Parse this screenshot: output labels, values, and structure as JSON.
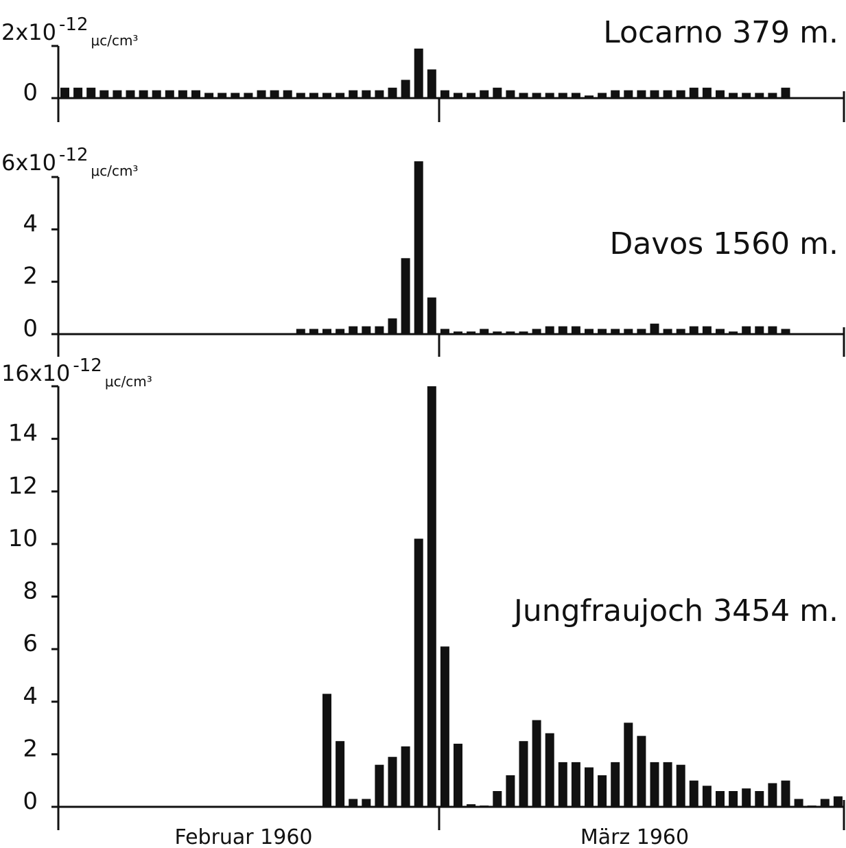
{
  "chart_data": [
    {
      "type": "bar",
      "station": "Locarno 379 m.",
      "unit_label": {
        "mantissa": "2x10",
        "exponent": "-12",
        "unit": "μc/cm³"
      },
      "yticks": [
        "0"
      ],
      "ylim": [
        0,
        2
      ],
      "values": [
        0.4,
        0.4,
        0.4,
        0.3,
        0.3,
        0.3,
        0.3,
        0.3,
        0.3,
        0.3,
        0.3,
        0.2,
        0.2,
        0.2,
        0.2,
        0.3,
        0.3,
        0.3,
        0.2,
        0.2,
        0.2,
        0.2,
        0.3,
        0.3,
        0.3,
        0.4,
        0.7,
        1.9,
        1.1,
        0.3,
        0.2,
        0.2,
        0.3,
        0.4,
        0.3,
        0.2,
        0.2,
        0.2,
        0.2,
        0.2,
        0.1,
        0.2,
        0.3,
        0.3,
        0.3,
        0.3,
        0.3,
        0.3,
        0.4,
        0.4,
        0.3,
        0.2,
        0.2,
        0.2,
        0.2,
        0.4
      ]
    },
    {
      "type": "bar",
      "station": "Davos 1560 m.",
      "unit_label": {
        "mantissa": "6x10",
        "exponent": "-12",
        "unit": "μc/cm³"
      },
      "yticks": [
        "0",
        "2",
        "4"
      ],
      "ylim": [
        0,
        6
      ],
      "values": [
        null,
        null,
        null,
        null,
        null,
        null,
        null,
        null,
        null,
        null,
        null,
        null,
        null,
        null,
        null,
        null,
        null,
        null,
        0.2,
        0.2,
        0.2,
        0.2,
        0.3,
        0.3,
        0.3,
        0.6,
        2.9,
        6.6,
        1.4,
        0.2,
        0.1,
        0.1,
        0.2,
        0.1,
        0.1,
        0.1,
        0.2,
        0.3,
        0.3,
        0.3,
        0.2,
        0.2,
        0.2,
        0.2,
        0.2,
        0.4,
        0.2,
        0.2,
        0.3,
        0.3,
        0.2,
        0.1,
        0.3,
        0.3,
        0.3,
        0.2
      ]
    },
    {
      "type": "bar",
      "station": "Jungfraujoch 3454 m.",
      "unit_label": {
        "mantissa": "16x10",
        "exponent": "-12",
        "unit": "μc/cm³"
      },
      "yticks": [
        "0",
        "2",
        "4",
        "6",
        "8",
        "10",
        "12",
        "14"
      ],
      "ylim": [
        0,
        16
      ],
      "values": [
        null,
        null,
        null,
        null,
        null,
        null,
        null,
        null,
        null,
        null,
        null,
        null,
        null,
        null,
        null,
        null,
        null,
        null,
        null,
        null,
        4.3,
        2.5,
        0.3,
        0.3,
        1.6,
        1.9,
        2.3,
        10.2,
        16.0,
        6.1,
        2.4,
        0.1,
        0.05,
        0.6,
        1.2,
        2.5,
        3.3,
        2.8,
        1.7,
        1.7,
        1.5,
        1.2,
        1.7,
        3.2,
        2.7,
        1.7,
        1.7,
        1.6,
        1.0,
        0.8,
        0.6,
        0.6,
        0.7,
        0.6,
        0.9,
        1.0,
        0.3,
        0.05,
        0.3,
        0.4
      ]
    }
  ],
  "x_axis": {
    "months": [
      "Februar 1960",
      "März 1960"
    ]
  }
}
